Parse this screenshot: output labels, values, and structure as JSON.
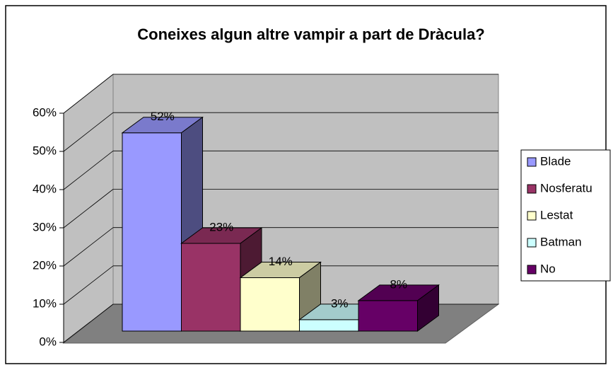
{
  "chart_data": {
    "type": "bar3d",
    "title": "Coneixes algun altre vampir a part de Dràcula?",
    "series": [
      {
        "name": "Blade",
        "color": "#9999ff",
        "values": [
          52
        ],
        "value_labels": [
          "52%"
        ]
      },
      {
        "name": "Nosferatu",
        "color": "#993366",
        "values": [
          23
        ],
        "value_labels": [
          "23%"
        ]
      },
      {
        "name": "Lestat",
        "color": "#ffffcc",
        "values": [
          14
        ],
        "value_labels": [
          "14%"
        ]
      },
      {
        "name": "Batman",
        "color": "#ccffff",
        "values": [
          3
        ],
        "value_labels": [
          "3%"
        ]
      },
      {
        "name": "No",
        "color": "#660066",
        "values": [
          8
        ],
        "value_labels": [
          "8%"
        ]
      }
    ],
    "ylim": [
      0,
      60
    ],
    "yticks": [
      {
        "value": 0,
        "label": "0%"
      },
      {
        "value": 10,
        "label": "10%"
      },
      {
        "value": 20,
        "label": "20%"
      },
      {
        "value": 30,
        "label": "30%"
      },
      {
        "value": 40,
        "label": "40%"
      },
      {
        "value": 50,
        "label": "50%"
      },
      {
        "value": 60,
        "label": "60%"
      }
    ],
    "grid": true,
    "legend": "right"
  }
}
